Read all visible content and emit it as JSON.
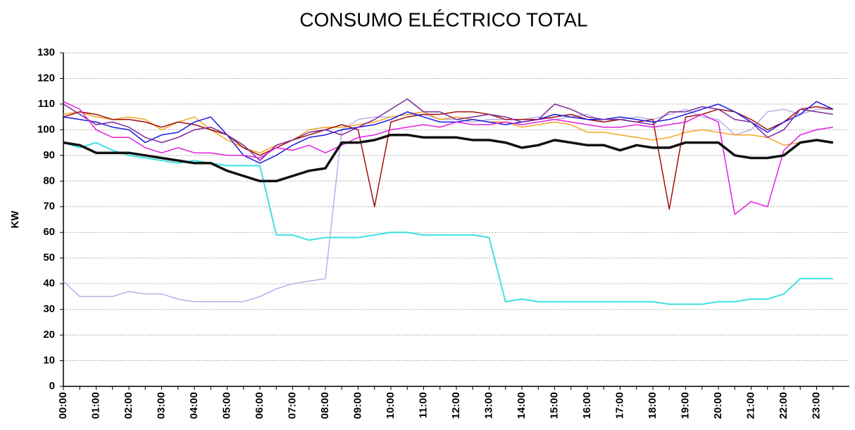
{
  "chart_data": {
    "type": "line",
    "title": "CONSUMO ELÉCTRICO TOTAL",
    "y_label": "KW",
    "categories": [
      "00:00",
      null,
      "01:00",
      null,
      "02:00",
      null,
      "03:00",
      null,
      "04:00",
      null,
      "05:00",
      null,
      "06:00",
      null,
      "07:00",
      null,
      "08:00",
      null,
      "09:00",
      null,
      "10:00",
      null,
      "11:00",
      null,
      "12:00",
      null,
      "13:00",
      null,
      "14:00",
      null,
      "15:00",
      null,
      "16:00",
      null,
      "17:00",
      null,
      "18:00",
      null,
      "19:00",
      null,
      "20:00",
      null,
      "21:00",
      null,
      "22:00",
      null,
      "23:00",
      null
    ],
    "ylim": [
      0,
      130
    ],
    "yticks": [
      0,
      10,
      20,
      30,
      40,
      50,
      60,
      70,
      80,
      90,
      100,
      110,
      120,
      130
    ],
    "grid": true,
    "series": [
      {
        "color": "#b9b0e8",
        "width": 1.5,
        "values": [
          41,
          35,
          35,
          35,
          37,
          36,
          36,
          34,
          33,
          33,
          33,
          33,
          35,
          38,
          40,
          41,
          42,
          100,
          104,
          105,
          105,
          106,
          106,
          104,
          104,
          103,
          104,
          104,
          104,
          105,
          104,
          105,
          106,
          103,
          104,
          105,
          104,
          106,
          108,
          105,
          104,
          98,
          100,
          107,
          108,
          106,
          108,
          108
        ]
      },
      {
        "color": "#3ee0e0",
        "width": 2,
        "values": [
          95,
          93,
          95,
          92,
          90,
          89,
          88,
          87,
          88,
          87,
          86,
          86,
          86,
          59,
          59,
          57,
          58,
          58,
          58,
          59,
          60,
          60,
          59,
          59,
          59,
          59,
          58,
          33,
          34,
          33,
          33,
          33,
          33,
          33,
          33,
          33,
          33,
          32,
          32,
          32,
          33,
          33,
          34,
          34,
          36,
          42,
          42,
          42
        ]
      },
      {
        "color": "#f5a623",
        "width": 1.5,
        "values": [
          106,
          107,
          105,
          104,
          105,
          104,
          100,
          103,
          105,
          100,
          96,
          93,
          91,
          94,
          96,
          100,
          101,
          101,
          102,
          103,
          105,
          106,
          107,
          104,
          105,
          104,
          103,
          103,
          101,
          102,
          103,
          102,
          99,
          99,
          98,
          97,
          96,
          97,
          99,
          100,
          99,
          98,
          98,
          97,
          94,
          95,
          96,
          95
        ]
      },
      {
        "color": "#a01010",
        "width": 1.5,
        "values": [
          105,
          107,
          106,
          104,
          104,
          103,
          101,
          103,
          102,
          100,
          98,
          93,
          90,
          93,
          96,
          98,
          100,
          102,
          100,
          70,
          103,
          105,
          106,
          106,
          107,
          107,
          106,
          104,
          104,
          104,
          105,
          106,
          104,
          103,
          104,
          103,
          104,
          69,
          105,
          106,
          108,
          107,
          104,
          100,
          103,
          108,
          109,
          108
        ]
      },
      {
        "color": "#1a1ae0",
        "width": 1.5,
        "values": [
          105,
          104,
          103,
          101,
          100,
          95,
          98,
          99,
          103,
          105,
          98,
          90,
          87,
          90,
          94,
          97,
          98,
          100,
          101,
          102,
          104,
          107,
          105,
          103,
          103,
          104,
          103,
          102,
          103,
          104,
          106,
          105,
          104,
          104,
          105,
          104,
          103,
          104,
          106,
          108,
          110,
          107,
          103,
          99,
          103,
          106,
          111,
          108
        ]
      },
      {
        "color": "#7a2a9a",
        "width": 1.5,
        "values": [
          110,
          106,
          102,
          103,
          101,
          97,
          95,
          97,
          100,
          101,
          98,
          94,
          88,
          94,
          96,
          99,
          100,
          98,
          101,
          104,
          108,
          112,
          107,
          107,
          104,
          105,
          106,
          105,
          103,
          104,
          110,
          108,
          105,
          104,
          104,
          103,
          102,
          107,
          107,
          109,
          108,
          104,
          103,
          97,
          100,
          108,
          107,
          106
        ]
      },
      {
        "color": "#e020e0",
        "width": 1.5,
        "values": [
          111,
          108,
          100,
          97,
          97,
          93,
          91,
          93,
          91,
          91,
          90,
          90,
          89,
          93,
          92,
          94,
          91,
          94,
          97,
          98,
          100,
          101,
          102,
          101,
          103,
          102,
          102,
          103,
          102,
          103,
          104,
          103,
          102,
          101,
          101,
          102,
          101,
          102,
          103,
          106,
          103,
          67,
          72,
          70,
          92,
          98,
          100,
          101
        ]
      },
      {
        "color": "#111111",
        "width": 3.5,
        "values": [
          95,
          94,
          91,
          91,
          91,
          90,
          89,
          88,
          87,
          87,
          84,
          82,
          80,
          80,
          82,
          84,
          85,
          95,
          95,
          96,
          98,
          98,
          97,
          97,
          97,
          96,
          96,
          95,
          93,
          94,
          96,
          95,
          94,
          94,
          92,
          94,
          93,
          93,
          95,
          95,
          95,
          90,
          89,
          89,
          90,
          95,
          96,
          95
        ]
      }
    ]
  }
}
